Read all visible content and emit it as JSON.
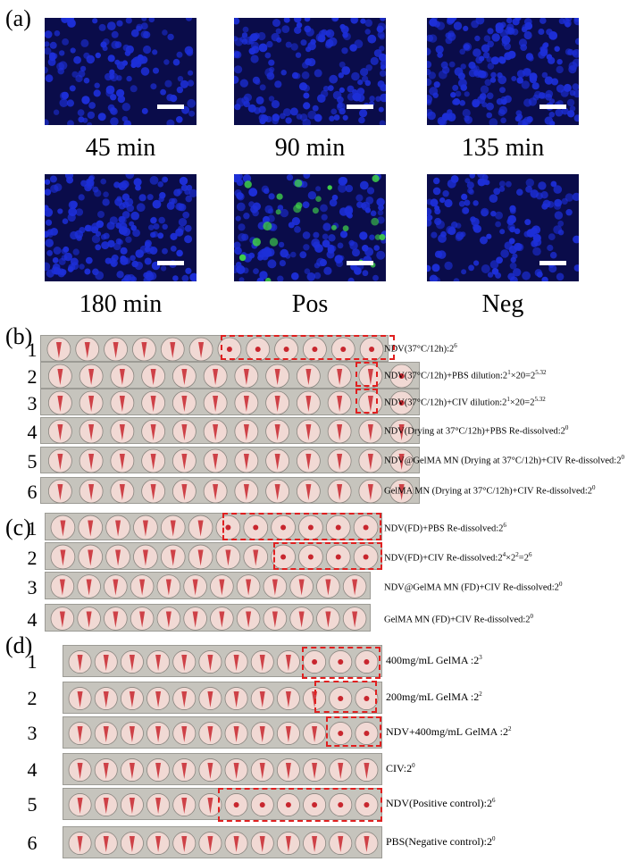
{
  "panels": {
    "a": "(a)",
    "b": "(b)",
    "c": "(c)",
    "d": "(d)"
  },
  "micrographs": [
    {
      "caption": "45 min",
      "stain": "blue"
    },
    {
      "caption": "90 min",
      "stain": "blue"
    },
    {
      "caption": "135 min",
      "stain": "blue"
    },
    {
      "caption": "180 min",
      "stain": "blue"
    },
    {
      "caption": "Pos",
      "stain": "blue-green"
    },
    {
      "caption": "Neg",
      "stain": "blue"
    }
  ],
  "colors": {
    "dapi": "#1d2fd8",
    "fitc": "#3fd04a",
    "background": "#0a0c4a",
    "highlight": "#e02020",
    "well": "#f1d9d4",
    "button": "#c8262e"
  },
  "panel_b": [
    {
      "num": "1",
      "base": "NDV(37°C/12h):2",
      "exp": "6"
    },
    {
      "num": "2",
      "base": "NDV(37°C/12h)+PBS dilution:2",
      "exp": "1",
      "rest": "×20=2",
      "exp2": "5.32"
    },
    {
      "num": "3",
      "base": "NDV(37°C/12h)+CIV dilution:2",
      "exp": "1",
      "rest": "×20=2",
      "exp2": "5.32"
    },
    {
      "num": "4",
      "base": "NDV(Drying at 37°C/12h)+PBS Re-dissolved:2",
      "exp": "0"
    },
    {
      "num": "5",
      "base": "NDV@GelMA MN (Drying at 37°C/12h)+CIV Re-dissolved:2",
      "exp": "0"
    },
    {
      "num": "6",
      "base": "GelMA MN (Drying at 37°C/12h)+CIV Re-dissolved:2",
      "exp": "0"
    }
  ],
  "panel_c": [
    {
      "num": "1",
      "base": "NDV(FD)+PBS Re-dissolved:2",
      "exp": "6"
    },
    {
      "num": "2",
      "base": "NDV(FD)+CIV Re-dissolved:2",
      "exp": "4",
      "rest": "×2",
      "exp2": "2",
      "rest2": "=2",
      "exp3": "6"
    },
    {
      "num": "3",
      "base": "NDV@GelMA MN (FD)+CIV Re-dissolved:2",
      "exp": "0"
    },
    {
      "num": "4",
      "base": "GelMA MN (FD)+CIV Re-dissolved:2",
      "exp": "0"
    }
  ],
  "panel_d": [
    {
      "num": "1",
      "base": "400mg/mL GelMA :2",
      "exp": "3"
    },
    {
      "num": "2",
      "base": "200mg/mL GelMA :2",
      "exp": "2"
    },
    {
      "num": "3",
      "base": "NDV+400mg/mL GelMA :2",
      "exp": "2"
    },
    {
      "num": "4",
      "base": "CIV:2",
      "exp": "0"
    },
    {
      "num": "5",
      "base": "NDV(Positive control):2",
      "exp": "6"
    },
    {
      "num": "6",
      "base": "PBS(Negative control):2",
      "exp": "0"
    }
  ]
}
